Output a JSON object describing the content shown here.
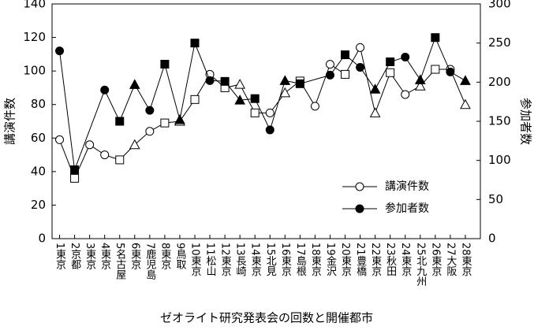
{
  "chart_data": {
    "type": "line",
    "title": "",
    "xlabel": "ゼオライト研究発表会の回数と開催都市",
    "ylabel": "講演件数",
    "y2label": "参加者数",
    "ylim": [
      0,
      140
    ],
    "y2lim": [
      0,
      300
    ],
    "yticks": [
      "0",
      "20",
      "40",
      "60",
      "80",
      "100",
      "120",
      "140"
    ],
    "y2ticks": [
      "0",
      "50",
      "100",
      "150",
      "200",
      "250",
      "300"
    ],
    "grid": false,
    "legend_placement": "lower-right",
    "categories": [
      "1東京",
      "2京都",
      "3東京",
      "4東京",
      "5名古屋",
      "6東京",
      "7鹿児島",
      "8東京",
      "9鳥取",
      "10東京",
      "11松山",
      "12東京",
      "13長崎",
      "14東京",
      "15北見",
      "16東京",
      "17島根",
      "18東京",
      "19金沢",
      "20東京",
      "21豊橋",
      "22東京",
      "23秋田",
      "24東京",
      "25北九州",
      "26東京",
      "27大阪",
      "28東京"
    ],
    "series": [
      {
        "name": "講演件数",
        "axis": "left",
        "values": [
          59,
          36,
          56,
          50,
          47,
          56,
          64,
          69,
          70,
          83,
          98,
          90,
          92,
          75,
          75,
          87,
          94,
          79,
          104,
          98,
          114,
          75,
          99,
          86,
          91,
          101,
          101,
          80
        ],
        "markers": [
          "circle",
          "square",
          "circle",
          "circle",
          "square",
          "triangle",
          "circle",
          "square",
          "triangle",
          "square",
          "circle",
          "square",
          "triangle",
          "square",
          "circle",
          "triangle",
          "square",
          "circle",
          "circle",
          "square",
          "circle",
          "triangle",
          "square",
          "circle",
          "triangle",
          "square",
          "circle",
          "triangle"
        ]
      },
      {
        "name": "参加者数",
        "axis": "right",
        "values": [
          240,
          88,
          null,
          190,
          150,
          197,
          164,
          223,
          152,
          250,
          202,
          201,
          177,
          179,
          139,
          202,
          198,
          null,
          209,
          235,
          219,
          191,
          226,
          232,
          203,
          257,
          213,
          202
        ],
        "markers": [
          "circle",
          "square",
          "none",
          "circle",
          "square",
          "triangle",
          "circle",
          "square",
          "triangle",
          "square",
          "circle",
          "square",
          "triangle",
          "square",
          "circle",
          "triangle",
          "square",
          "none",
          "circle",
          "square",
          "circle",
          "triangle",
          "square",
          "circle",
          "triangle",
          "square",
          "circle",
          "triangle"
        ]
      }
    ]
  }
}
